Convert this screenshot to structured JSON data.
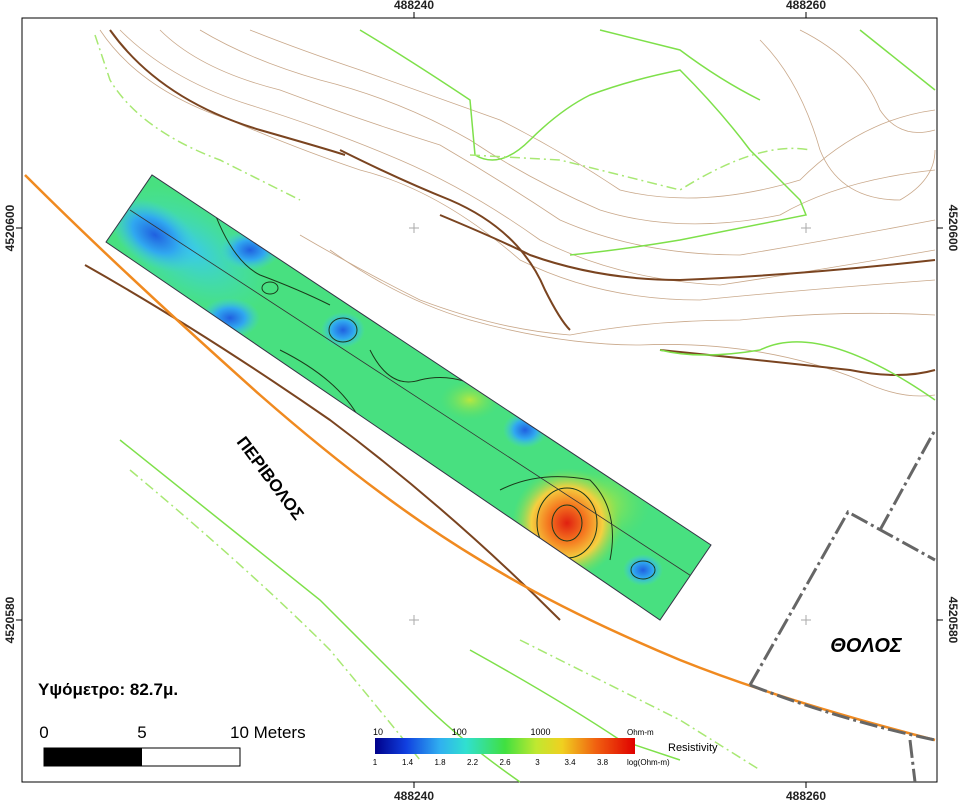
{
  "axes": {
    "top": [
      488240,
      488260
    ],
    "bottom": [
      488240,
      488260
    ],
    "left": [
      4520600,
      4520580
    ],
    "right": [
      4520600,
      4520580
    ]
  },
  "labels": {
    "perivolos": "ΠΕΡΙΒΟΛΟΣ",
    "tholos": "ΘΟΛΟΣ",
    "elevation": "Υψόμετρο: 82.7μ."
  },
  "scale_bar": {
    "ticks": [
      0,
      5,
      "10 Meters"
    ]
  },
  "legend": {
    "title": "Resistivity",
    "unit": "Ohm-m",
    "log_unit": "log(Ohm-m)",
    "ticks": [
      10,
      100,
      1000
    ],
    "log_ticks": [
      1,
      1.4,
      1.8,
      2.2,
      2.6,
      3,
      3.4,
      3.8
    ]
  }
}
